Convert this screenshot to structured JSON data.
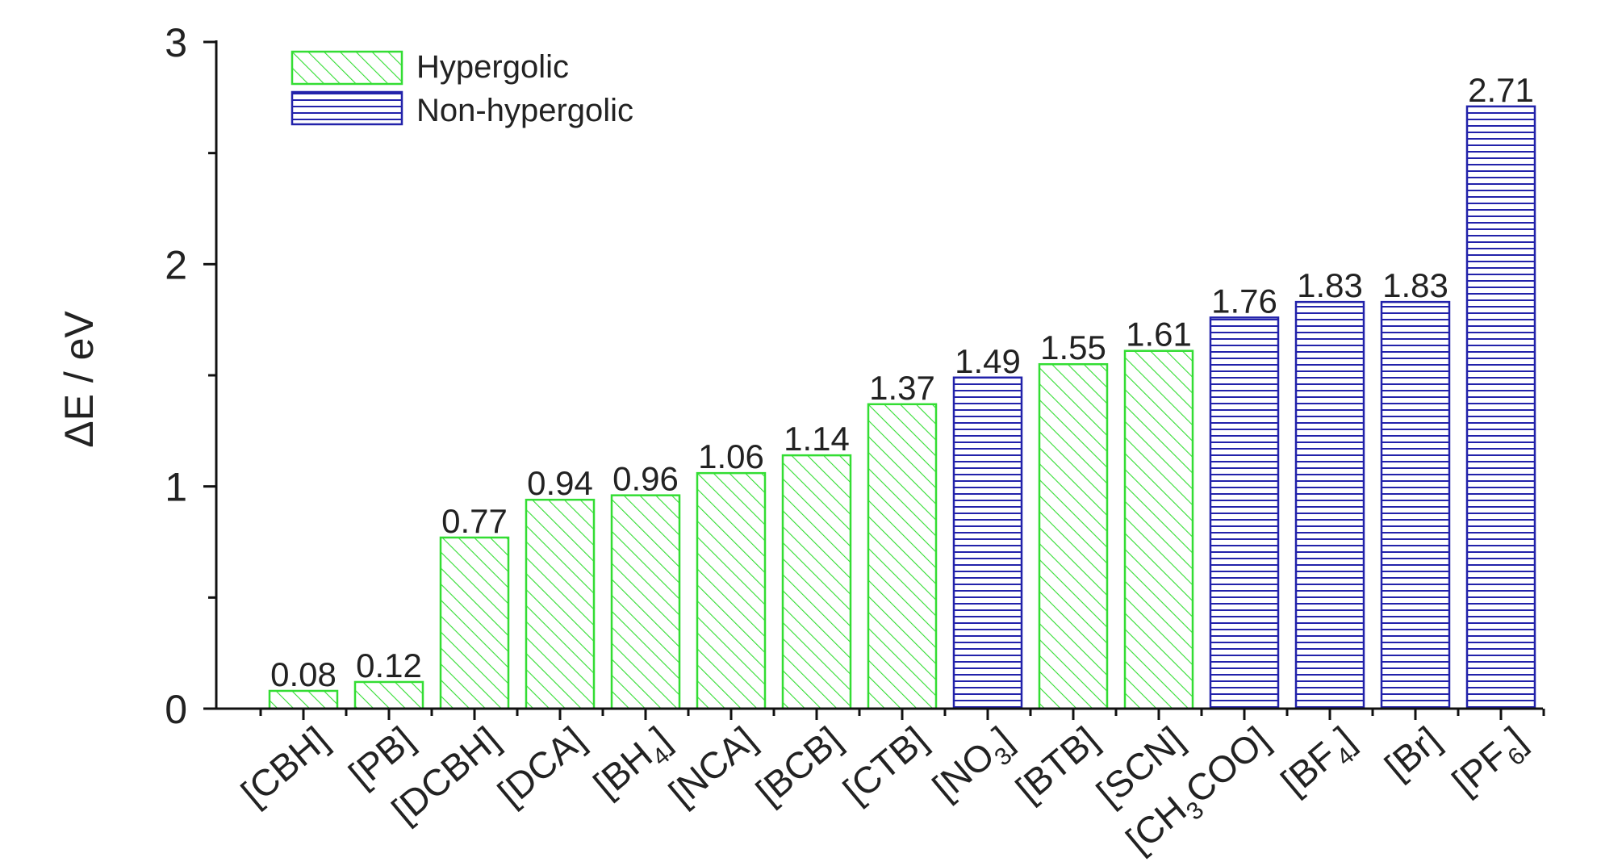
{
  "chart_data": {
    "type": "bar",
    "ylabel": "ΔE / eV",
    "ylim": [
      0,
      3
    ],
    "yticks": [
      "0",
      "1",
      "2",
      "3"
    ],
    "legend": {
      "placement": "top-left",
      "entries": [
        {
          "key": "hypergolic",
          "label": "Hypergolic",
          "color": "#33dd33",
          "pattern": "diagonal"
        },
        {
          "key": "nonhypergolic",
          "label": "Non-hypergolic",
          "color": "#2222aa",
          "pattern": "horizontal"
        }
      ]
    },
    "bars": [
      {
        "category": "[CBH]",
        "base": "[CBH]",
        "sub": "",
        "tail": "",
        "value": 0.08,
        "label": "0.08",
        "group": "hypergolic"
      },
      {
        "category": "[PB]",
        "base": "[PB]",
        "sub": "",
        "tail": "",
        "value": 0.12,
        "label": "0.12",
        "group": "hypergolic"
      },
      {
        "category": "[DCBH]",
        "base": "[DCBH]",
        "sub": "",
        "tail": "",
        "value": 0.77,
        "label": "0.77",
        "group": "hypergolic"
      },
      {
        "category": "[DCA]",
        "base": "[DCA]",
        "sub": "",
        "tail": "",
        "value": 0.94,
        "label": "0.94",
        "group": "hypergolic"
      },
      {
        "category": "[BH4]",
        "base": "[BH",
        "sub": "4",
        "tail": "]",
        "value": 0.96,
        "label": "0.96",
        "group": "hypergolic"
      },
      {
        "category": "[NCA]",
        "base": "[NCA]",
        "sub": "",
        "tail": "",
        "value": 1.06,
        "label": "1.06",
        "group": "hypergolic"
      },
      {
        "category": "[BCB]",
        "base": "[BCB]",
        "sub": "",
        "tail": "",
        "value": 1.14,
        "label": "1.14",
        "group": "hypergolic"
      },
      {
        "category": "[CTB]",
        "base": "[CTB]",
        "sub": "",
        "tail": "",
        "value": 1.37,
        "label": "1.37",
        "group": "hypergolic"
      },
      {
        "category": "[NO3]",
        "base": "[NO",
        "sub": "3",
        "tail": "]",
        "value": 1.49,
        "label": "1.49",
        "group": "nonhypergolic"
      },
      {
        "category": "[BTB]",
        "base": "[BTB]",
        "sub": "",
        "tail": "",
        "value": 1.55,
        "label": "1.55",
        "group": "hypergolic"
      },
      {
        "category": "[SCN]",
        "base": "[SCN]",
        "sub": "",
        "tail": "",
        "value": 1.61,
        "label": "1.61",
        "group": "hypergolic"
      },
      {
        "category": "[CH3COO]",
        "base": "[CH",
        "sub": "3",
        "tail": "COO]",
        "value": 1.76,
        "label": "1.76",
        "group": "nonhypergolic"
      },
      {
        "category": "[BF4]",
        "base": "[BF",
        "sub": "4",
        "tail": "]",
        "value": 1.83,
        "label": "1.83",
        "group": "nonhypergolic"
      },
      {
        "category": "[Br]",
        "base": "[Br]",
        "sub": "",
        "tail": "",
        "value": 1.83,
        "label": "1.83",
        "group": "nonhypergolic"
      },
      {
        "category": "[PF6]",
        "base": "[PF",
        "sub": "6",
        "tail": "]",
        "value": 2.71,
        "label": "2.71",
        "group": "nonhypergolic"
      }
    ]
  }
}
